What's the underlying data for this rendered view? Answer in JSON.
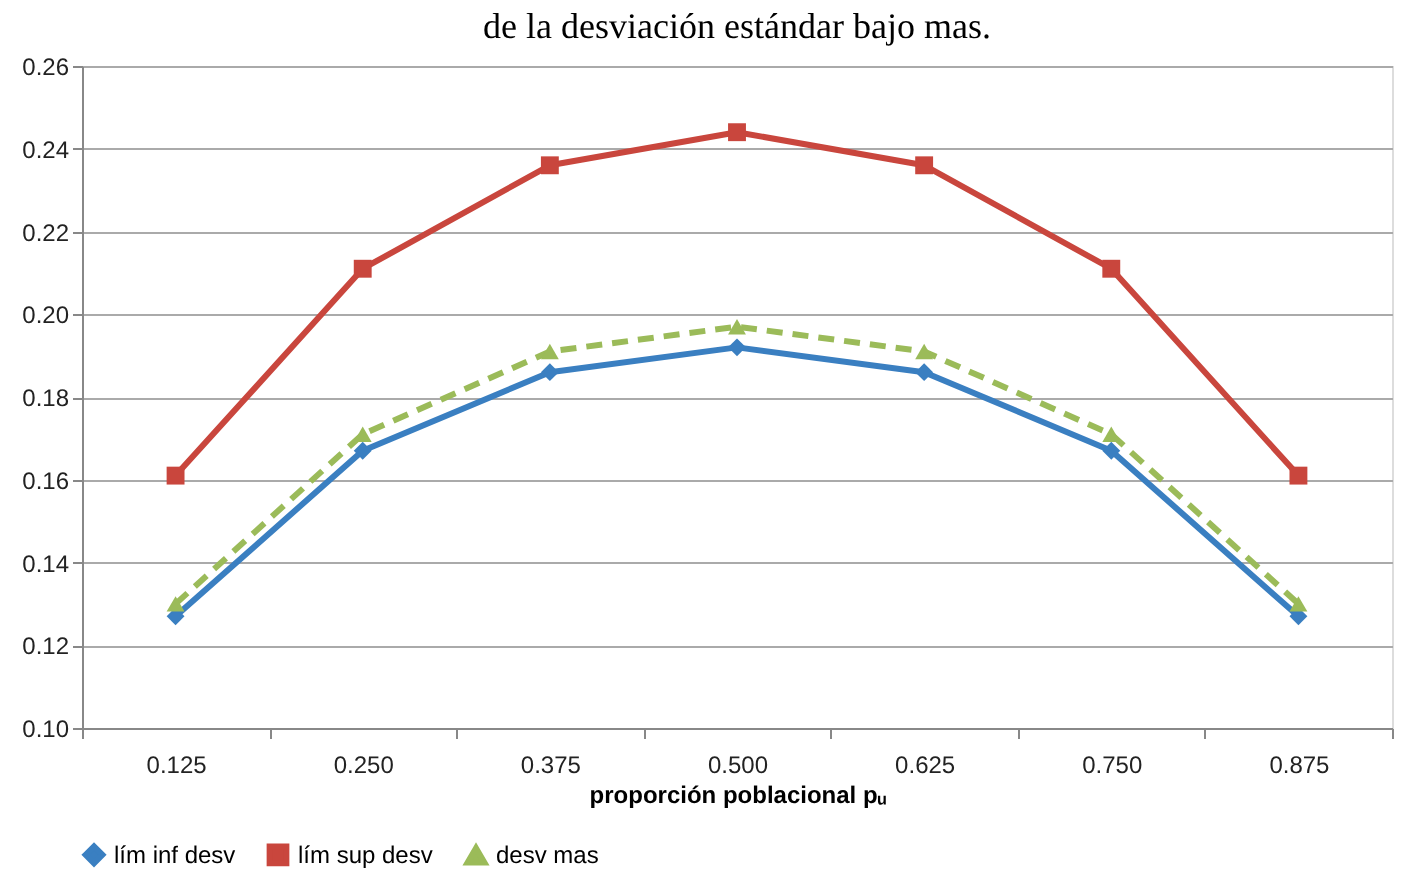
{
  "chart_data": {
    "type": "line",
    "title": "de la desviación estándar bajo mas.",
    "xlabel": "proporción poblacional pᵤ",
    "categories": [
      "0.125",
      "0.250",
      "0.375",
      "0.500",
      "0.625",
      "0.750",
      "0.875"
    ],
    "series": [
      {
        "name": "lím inf desv",
        "color": "#3a7fc1",
        "marker": "diamond",
        "line_style": "solid",
        "values": [
          0.127,
          0.167,
          0.186,
          0.192,
          0.186,
          0.167,
          0.127
        ]
      },
      {
        "name": "lím sup desv",
        "color": "#c9463d",
        "marker": "square",
        "line_style": "solid",
        "values": [
          0.161,
          0.211,
          0.236,
          0.244,
          0.236,
          0.211,
          0.161
        ]
      },
      {
        "name": "desv mas",
        "color": "#9bbb59",
        "marker": "triangle",
        "line_style": "dashed",
        "values": [
          0.13,
          0.171,
          0.191,
          0.197,
          0.191,
          0.171,
          0.13
        ]
      }
    ],
    "ylim": [
      0.1,
      0.26
    ],
    "yticks": [
      {
        "value": 0.1,
        "label": "0.10"
      },
      {
        "value": 0.12,
        "label": "0.12"
      },
      {
        "value": 0.14,
        "label": "0.14"
      },
      {
        "value": 0.16,
        "label": "0.16"
      },
      {
        "value": 0.18,
        "label": "0.18"
      },
      {
        "value": 0.2,
        "label": "0.20"
      },
      {
        "value": 0.22,
        "label": "0.22"
      },
      {
        "value": 0.24,
        "label": "0.24"
      },
      {
        "value": 0.26,
        "label": "0.26"
      }
    ],
    "grid": "y",
    "legend": "bottom"
  }
}
